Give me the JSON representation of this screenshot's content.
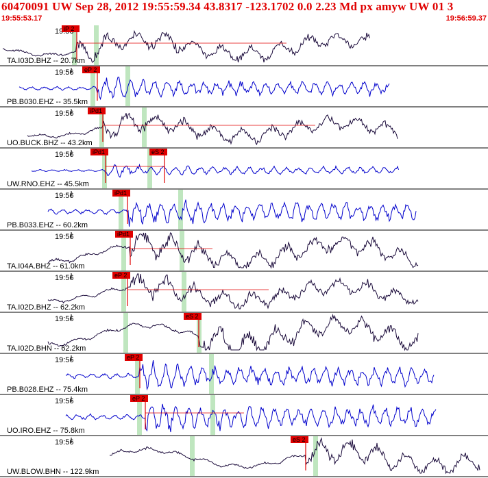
{
  "header": {
    "title": "60470091 UW Sep 28, 2012 19:55:59.34   43.8317 -123.1702  0.0 2.23 Md px amyw UW 01   3",
    "start_time": "19:55:53.17",
    "end_time": "19:56:59.37"
  },
  "colors": {
    "header_text": "#e00000",
    "pick_marker": "#e00000",
    "arrival_band": "#bfe6bf",
    "trace_broadband": "#1a0a3a",
    "trace_borehole": "#0000cc",
    "divider": "#000000"
  },
  "chart_data": {
    "type": "line",
    "title": "60470091 UW Sep 28, 2012 19:55:59.34",
    "x_axis": {
      "start": "19:55:53.17",
      "end": "19:56:59.37"
    },
    "traces": [
      {
        "label": "TA.I03D.BHZ -- 20.7km",
        "time_mark": "19:56",
        "style": "broadband",
        "picks": [
          {
            "label": "iP 2",
            "kind": "P"
          }
        ]
      },
      {
        "label": "PB.B030.EHZ -- 35.5km",
        "time_mark": "19:56",
        "style": "borehole",
        "picks": [
          {
            "label": "eP 2",
            "kind": "P"
          }
        ]
      },
      {
        "label": "UO.BUCK.BHZ -- 43.2km",
        "time_mark": "19:56",
        "style": "broadband",
        "picks": [
          {
            "label": "iPd1",
            "kind": "P"
          }
        ]
      },
      {
        "label": "UW.RNO.EHZ -- 45.5km",
        "time_mark": "19:56",
        "style": "borehole",
        "picks": [
          {
            "label": "iPd1",
            "kind": "P"
          },
          {
            "label": "eS 2",
            "kind": "S"
          }
        ]
      },
      {
        "label": "PB.B033.EHZ -- 60.2km",
        "time_mark": "19:56",
        "style": "borehole",
        "picks": [
          {
            "label": "iPd1",
            "kind": "P"
          }
        ]
      },
      {
        "label": "TA.I04A.BHZ -- 61.0km",
        "time_mark": "19:56",
        "style": "broadband",
        "picks": [
          {
            "label": "iPd1",
            "kind": "P"
          }
        ]
      },
      {
        "label": "TA.I02D.BHZ -- 62.2km",
        "time_mark": "19:56",
        "style": "broadband",
        "picks": [
          {
            "label": "eP 2",
            "kind": "P"
          }
        ]
      },
      {
        "label": "TA.I02D.BHN -- 62.2km",
        "time_mark": "19:56",
        "style": "broadband",
        "picks": [
          {
            "label": "eS 2",
            "kind": "S"
          }
        ]
      },
      {
        "label": "PB.B028.EHZ -- 75.4km",
        "time_mark": "19:56",
        "style": "borehole",
        "picks": [
          {
            "label": "eP 2",
            "kind": "P"
          }
        ]
      },
      {
        "label": "UO.IRO.EHZ -- 75.8km",
        "time_mark": "19:56",
        "style": "borehole",
        "picks": [
          {
            "label": "eP 2",
            "kind": "P"
          }
        ]
      },
      {
        "label": "UW.BLOW.BHN -- 122.9km",
        "time_mark": "19:56",
        "style": "broadband",
        "picks": [
          {
            "label": "eS 2",
            "kind": "S"
          }
        ]
      }
    ]
  }
}
